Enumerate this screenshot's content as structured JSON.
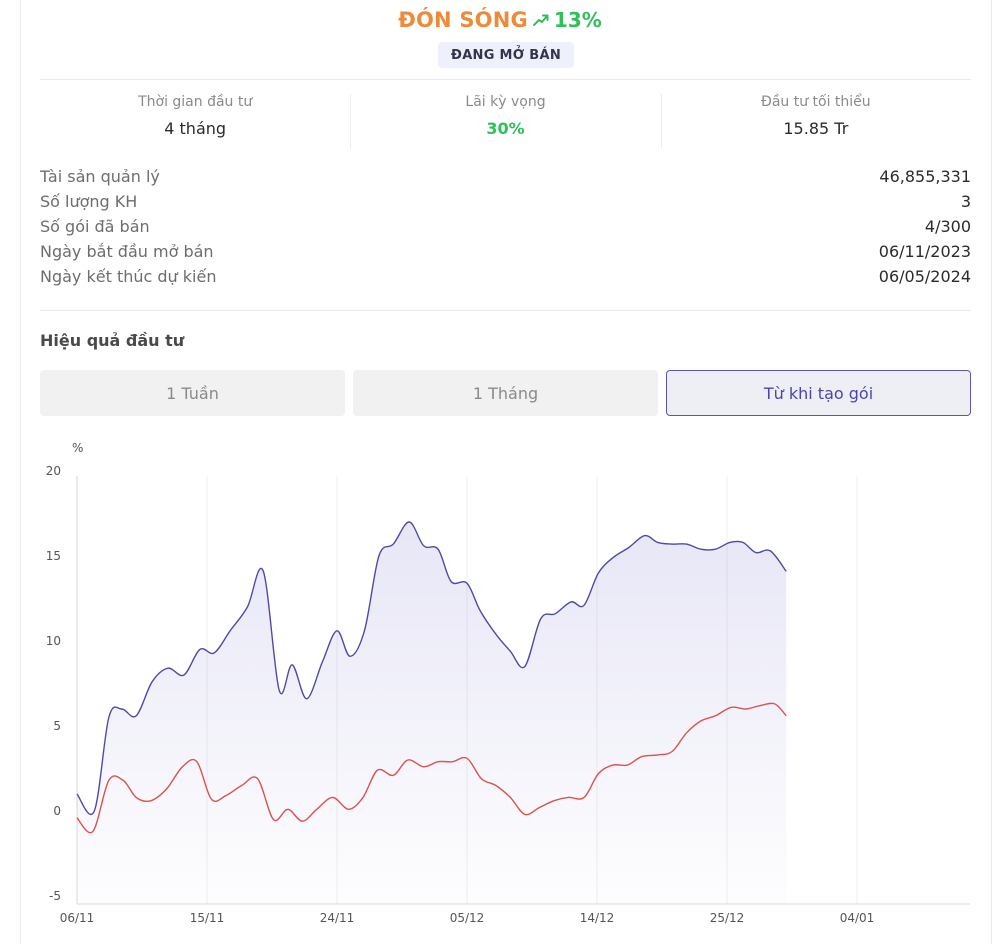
{
  "fund": {
    "name": "ĐÓN SÓNG",
    "change": "13%",
    "trend_icon": "trending-up-icon",
    "status": "ĐANG MỞ BÁN",
    "name_color": "#ee8b3a",
    "change_color": "#2fbf5b"
  },
  "stats": [
    {
      "label": "Thời gian đầu tư",
      "value": "4 tháng"
    },
    {
      "label": "Lãi kỳ vọng",
      "value": "30%"
    },
    {
      "label": "Đầu tư tối thiểu",
      "value": "15.85 Tr"
    }
  ],
  "info": [
    {
      "label": "Tài sản quản lý",
      "value": "46,855,331"
    },
    {
      "label": "Số lượng KH",
      "value": "3"
    },
    {
      "label": "Số gói đã bán",
      "value": "4/300"
    },
    {
      "label": "Ngày bắt đầu mở bán",
      "value": "06/11/2023"
    },
    {
      "label": "Ngày kết thúc dự kiến",
      "value": "06/05/2024"
    }
  ],
  "performance": {
    "title": "Hiệu quả đầu tư",
    "tabs": [
      {
        "label": "1 Tuần",
        "active": false
      },
      {
        "label": "1 Tháng",
        "active": false
      },
      {
        "label": "Từ khi tạo gói",
        "active": true
      }
    ],
    "accent": "#5a56b8"
  },
  "chart_data": {
    "type": "line",
    "ylabel": "%",
    "ylim": [
      -5,
      20
    ],
    "yticks": [
      20,
      15,
      10,
      5,
      0,
      -5
    ],
    "xticks": [
      "06/11",
      "15/11",
      "24/11",
      "05/12",
      "14/12",
      "25/12",
      "04/01"
    ],
    "grid": "vertical",
    "series": [
      {
        "color": "#4f4aa8",
        "fill": true,
        "points": [
          [
            0,
            1.0
          ],
          [
            1.2,
            0.0
          ],
          [
            2.2,
            5.5
          ],
          [
            3.1,
            6.0
          ],
          [
            4.1,
            5.6
          ],
          [
            5.2,
            7.6
          ],
          [
            6.3,
            8.4
          ],
          [
            7.4,
            8.0
          ],
          [
            8.5,
            9.5
          ],
          [
            9.5,
            9.3
          ],
          [
            10.6,
            10.6
          ],
          [
            11.8,
            12.0
          ],
          [
            12.9,
            14.1
          ],
          [
            14.0,
            7.1
          ],
          [
            14.9,
            8.6
          ],
          [
            15.9,
            6.6
          ],
          [
            17.0,
            8.8
          ],
          [
            18.0,
            10.6
          ],
          [
            18.9,
            9.1
          ],
          [
            19.9,
            10.6
          ],
          [
            20.9,
            15.0
          ],
          [
            21.9,
            15.7
          ],
          [
            23.0,
            17.0
          ],
          [
            24.0,
            15.6
          ],
          [
            25.0,
            15.4
          ],
          [
            25.9,
            13.5
          ],
          [
            27.0,
            13.4
          ],
          [
            27.9,
            11.8
          ],
          [
            29.0,
            10.4
          ],
          [
            30.0,
            9.4
          ],
          [
            31.0,
            8.5
          ],
          [
            32.1,
            11.3
          ],
          [
            33.1,
            11.6
          ],
          [
            34.2,
            12.3
          ],
          [
            35.1,
            12.1
          ],
          [
            36.1,
            14.0
          ],
          [
            37.1,
            14.9
          ],
          [
            38.2,
            15.5
          ],
          [
            39.3,
            16.2
          ],
          [
            40.2,
            15.8
          ],
          [
            41.2,
            15.7
          ],
          [
            42.2,
            15.7
          ],
          [
            43.2,
            15.4
          ],
          [
            44.2,
            15.4
          ],
          [
            45.2,
            15.8
          ],
          [
            46.1,
            15.8
          ],
          [
            47.0,
            15.2
          ],
          [
            48.0,
            15.3
          ],
          [
            49.1,
            14.1
          ]
        ]
      },
      {
        "color": "#d9534f",
        "fill": false,
        "points": [
          [
            0,
            -0.4
          ],
          [
            1.1,
            -1.2
          ],
          [
            2.2,
            1.8
          ],
          [
            3.2,
            1.8
          ],
          [
            4.1,
            0.8
          ],
          [
            5.1,
            0.6
          ],
          [
            6.2,
            1.3
          ],
          [
            7.3,
            2.6
          ],
          [
            8.3,
            2.9
          ],
          [
            9.3,
            0.7
          ],
          [
            10.3,
            0.9
          ],
          [
            11.4,
            1.5
          ],
          [
            12.5,
            1.9
          ],
          [
            13.6,
            -0.5
          ],
          [
            14.6,
            0.1
          ],
          [
            15.6,
            -0.6
          ],
          [
            16.6,
            0.1
          ],
          [
            17.7,
            0.8
          ],
          [
            18.8,
            0.1
          ],
          [
            19.8,
            0.8
          ],
          [
            20.8,
            2.4
          ],
          [
            21.9,
            2.1
          ],
          [
            22.9,
            3.0
          ],
          [
            24.0,
            2.6
          ],
          [
            25.0,
            2.9
          ],
          [
            26.0,
            2.9
          ],
          [
            27.0,
            3.1
          ],
          [
            28.0,
            1.9
          ],
          [
            29.0,
            1.5
          ],
          [
            30.0,
            0.8
          ],
          [
            31.0,
            -0.2
          ],
          [
            32.0,
            0.2
          ],
          [
            33.0,
            0.6
          ],
          [
            34.0,
            0.8
          ],
          [
            35.1,
            0.8
          ],
          [
            36.1,
            2.2
          ],
          [
            37.1,
            2.7
          ],
          [
            38.1,
            2.7
          ],
          [
            39.1,
            3.2
          ],
          [
            40.2,
            3.3
          ],
          [
            41.2,
            3.5
          ],
          [
            42.2,
            4.6
          ],
          [
            43.2,
            5.3
          ],
          [
            44.2,
            5.6
          ],
          [
            45.3,
            6.1
          ],
          [
            46.3,
            6.0
          ],
          [
            47.3,
            6.2
          ],
          [
            48.3,
            6.3
          ],
          [
            49.1,
            5.6
          ]
        ]
      }
    ]
  }
}
